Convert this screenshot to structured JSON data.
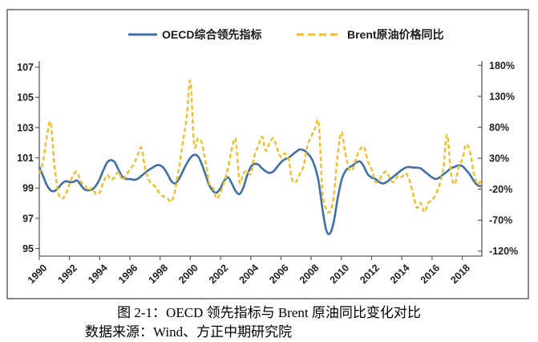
{
  "figure": {
    "caption": "图 2-1：OECD 领先指标与 Brent 原油同比变化对比",
    "source": "数据来源：Wind、方正中期研究院"
  },
  "chart_data": {
    "type": "line",
    "title": "",
    "grid": false,
    "legend_position": "top-center",
    "x_axis": {
      "tick_labels": [
        "1990",
        "1992",
        "1994",
        "1996",
        "1998",
        "2000",
        "2002",
        "2004",
        "2006",
        "2008",
        "2010",
        "2012",
        "2014",
        "2016",
        "2018"
      ],
      "range": [
        1990,
        2019.3
      ],
      "tick_rotation_deg": -45
    },
    "left_axis": {
      "ticks": [
        95,
        97,
        99,
        101,
        103,
        105,
        107
      ],
      "tick_labels": [
        "95",
        "97",
        "99",
        "101",
        "103",
        "105",
        "107"
      ],
      "range": [
        94.5,
        107.4
      ],
      "bound_series": "OECD综合领先指标"
    },
    "right_axis": {
      "ticks": [
        -120,
        -70,
        -20,
        30,
        80,
        130,
        180
      ],
      "tick_labels": [
        "-120%",
        "-70%",
        "-20%",
        "30%",
        "80%",
        "130%",
        "180%"
      ],
      "range": [
        -128,
        187
      ],
      "bound_series": "Brent原油价格同比"
    },
    "series": [
      {
        "name": "OECD综合领先指标",
        "axis": "left",
        "color": "#3E6FA6",
        "line_style": "solid",
        "x_start": 1990,
        "x_step": 0.25,
        "values": [
          100.4,
          99.8,
          99.2,
          98.85,
          98.8,
          99.0,
          99.3,
          99.45,
          99.4,
          99.4,
          99.5,
          99.2,
          98.9,
          98.85,
          98.9,
          99.15,
          99.6,
          100.2,
          100.7,
          100.85,
          100.7,
          100.2,
          99.75,
          99.6,
          99.6,
          99.55,
          99.6,
          99.8,
          100.0,
          100.2,
          100.35,
          100.5,
          100.5,
          100.3,
          99.9,
          99.45,
          99.3,
          99.6,
          100.1,
          100.6,
          101.0,
          101.2,
          101.1,
          100.6,
          99.9,
          99.2,
          98.8,
          98.7,
          99.0,
          99.5,
          99.7,
          99.3,
          98.8,
          98.6,
          99.0,
          99.8,
          100.4,
          100.6,
          100.55,
          100.3,
          100.1,
          100.0,
          100.1,
          100.4,
          100.7,
          100.9,
          101.0,
          101.2,
          101.4,
          101.55,
          101.5,
          101.3,
          101.0,
          100.4,
          99.4,
          97.6,
          96.2,
          96.0,
          96.8,
          98.3,
          99.5,
          100.1,
          100.35,
          100.5,
          100.7,
          100.75,
          100.4,
          99.9,
          99.7,
          99.6,
          99.4,
          99.3,
          99.4,
          99.6,
          99.8,
          100.0,
          100.2,
          100.35,
          100.4,
          100.35,
          100.35,
          100.3,
          100.1,
          99.9,
          99.7,
          99.6,
          99.7,
          99.9,
          100.1,
          100.3,
          100.4,
          100.5,
          100.45,
          100.2,
          99.9,
          99.5,
          99.2,
          99.1
        ]
      },
      {
        "name": "Brent原油价格同比",
        "axis": "right",
        "color": "#F0BE28",
        "line_style": "dashed",
        "unit": "%",
        "x_start": 1990,
        "x_step": 0.25,
        "values": [
          5,
          25,
          65,
          88,
          20,
          -25,
          -35,
          -28,
          -12,
          3,
          8,
          -8,
          -13,
          -22,
          -18,
          -28,
          -25,
          -8,
          3,
          -5,
          0,
          8,
          -5,
          3,
          12,
          20,
          35,
          47,
          15,
          -5,
          -12,
          -18,
          -28,
          -32,
          -35,
          -40,
          -20,
          15,
          55,
          95,
          155,
          52,
          62,
          55,
          25,
          -10,
          -18,
          -35,
          -25,
          -8,
          15,
          45,
          60,
          -8,
          5,
          10,
          5,
          35,
          50,
          65,
          42,
          55,
          62,
          45,
          32,
          38,
          28,
          -5,
          -8,
          5,
          18,
          50,
          65,
          78,
          86,
          -25,
          -52,
          -56,
          -30,
          35,
          72,
          40,
          14,
          12,
          32,
          45,
          48,
          25,
          12,
          -8,
          -5,
          5,
          8,
          -5,
          -8,
          2,
          0,
          6,
          -5,
          -28,
          -50,
          -42,
          -57,
          -42,
          -38,
          -28,
          -12,
          15,
          68,
          8,
          -12,
          15,
          28,
          52,
          42,
          8,
          -12,
          -6
        ]
      }
    ]
  }
}
